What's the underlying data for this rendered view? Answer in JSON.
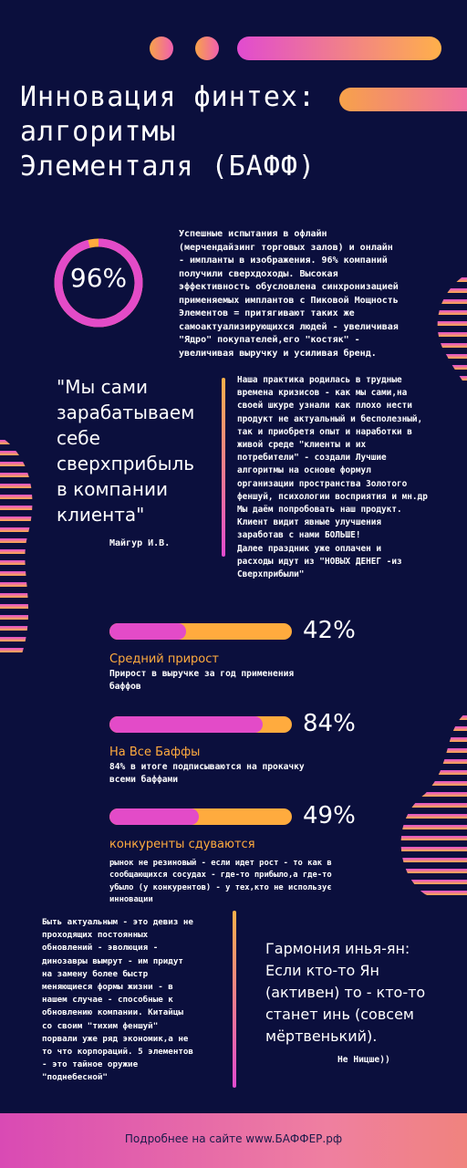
{
  "colors": {
    "background": "#0b0f3d",
    "accent_pink": "#e34bc8",
    "accent_orange": "#ffab3e",
    "text": "#ffffff"
  },
  "title": "Инновация финтех:\nалгоритмы\nЭлементаля (БАФФ)",
  "ring": {
    "label": "96%",
    "value": 0.96
  },
  "intro": "Успешные испытания в офлайн\n(мерчендайзинг торговых залов) и онлайн\n- импланты в изображения. 96% компаний\nполучили сверхдоходы. Высокая\nэффективность обусловлена синхронизацией\nприменяемых имплантов с Пиковой Мощность\nЭлементов = притягивают таких же\nсамоактуализирующихся людей - увеличивая\n\"Ядро\" покупателей,его \"костяк\" -\nувеличивая выручку и усиливая бренд.",
  "quote": {
    "text": "\"Мы сами\nзарабатываем\nсебе\nсверхприбыль\nв компании\nклиента\"",
    "author": "Майгур И.В."
  },
  "practice": "Наша практика родилась в трудные\nвремена кризисов - как мы сами,на\nсвоей шкуре узнали как плохо нести\nпродукт не актуальный и бесполезный,\nтак и приобретя опыт и наработки в\nживой среде \"клиенты и их\nпотребители\" - создали Лучшие\nалгоритмы на основе формул\nорганизации пространства  Золотого\nфеншуй, психологии восприятия и мн.др\n    Мы даём попробовать наш продукт.\nКлиент видит явные улучшения\nзаработав с нами БОЛЬШЕ!\n    Далее праздник уже оплачен и\nрасходы идут из \"НОВЫХ ДЕНЕГ -из\nСверхприбыли\"",
  "stats": [
    {
      "percent": "42%",
      "value": 0.42,
      "title": "Средний прирост",
      "desc": "Прирост в выручке за год применения\nбаффов"
    },
    {
      "percent": "84%",
      "value": 0.84,
      "title": "На Все Баффы",
      "desc": "84% в итоге подписываются на прокачку\nвсеми баффами"
    },
    {
      "percent": "49%",
      "value": 0.49,
      "title": "конкуренты сдуваются",
      "desc": "рынок не резиновый - если идет рост - то как в\nсообщающихся сосудах - где-то прибыло,а где-то\nубыло (у конкурентов) - у тех,кто не использує\nинновации"
    }
  ],
  "devise": "Быть актуальным - это девиз не\nпроходящих постоянных\nобновлений - эволюция -\nдинозавры вымрут - им придут\nна замену более быстр\nменяющиеся формы жизни - в\nнашем случае - способные к\nобновлению компании. Китайцы\nсо своим \"тихим феншуй\"\nпорвали уже ряд экономик,а не\nто что корпораций. 5 элементов\n- это тайное оружие\n\"поднебесной\"",
  "harmony": {
    "text": "Гармония инья-ян:\nЕсли кто-то Ян\n(активен) то - кто-то\nстанет инь (совсем\nмёртвенький).",
    "author": "Не Ницше))"
  },
  "footer": "Подробнее на сайте www.БАФФЕР.рф"
}
